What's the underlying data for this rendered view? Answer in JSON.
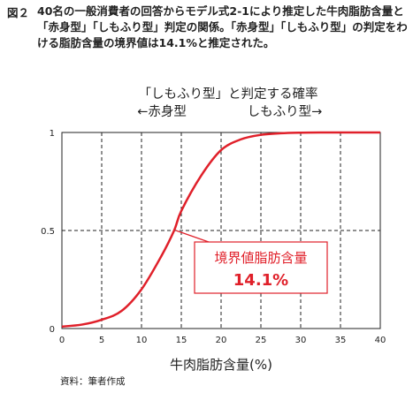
{
  "figure": {
    "number": "図２",
    "caption": "40名の一般消費者の回答からモデル式2-1により推定した牛肉脂肪含量と「赤身型」「しもふり型」判定の関係。「赤身型」「しもふり型」の判定をわける脂肪含量の境界値は14.1%と推定された。",
    "source": "資料：筆者作成"
  },
  "chart_data": {
    "type": "line",
    "title": "「しもふり型」と判定する確率",
    "subtitle_left": "←赤身型",
    "subtitle_right": "しもふり型→",
    "xlabel": "牛肉脂肪含量(%)",
    "ylabel": "",
    "xlim": [
      0,
      40
    ],
    "ylim": [
      0,
      1
    ],
    "x_ticks": [
      "0",
      "5",
      "10",
      "15",
      "20",
      "25",
      "30",
      "35",
      "40"
    ],
    "y_ticks": [
      "0",
      "0.5",
      "1"
    ],
    "grid": true,
    "series": [
      {
        "x": [
          0,
          2.5,
          5,
          7.5,
          10,
          12.5,
          14.1,
          15,
          17.5,
          20,
          22.5,
          25,
          27.5,
          30,
          32.5,
          35,
          37.5,
          40
        ],
        "values": [
          0.01,
          0.02,
          0.045,
          0.09,
          0.2,
          0.37,
          0.5,
          0.6,
          0.78,
          0.91,
          0.965,
          0.988,
          0.996,
          0.999,
          1.0,
          1.0,
          1.0,
          1.0
        ],
        "color": "#e0202a"
      }
    ],
    "annotation": {
      "label": "境界値脂肪含量",
      "value": "14.1%",
      "point": [
        14.1,
        0.5
      ],
      "color": "#e0202a"
    }
  }
}
